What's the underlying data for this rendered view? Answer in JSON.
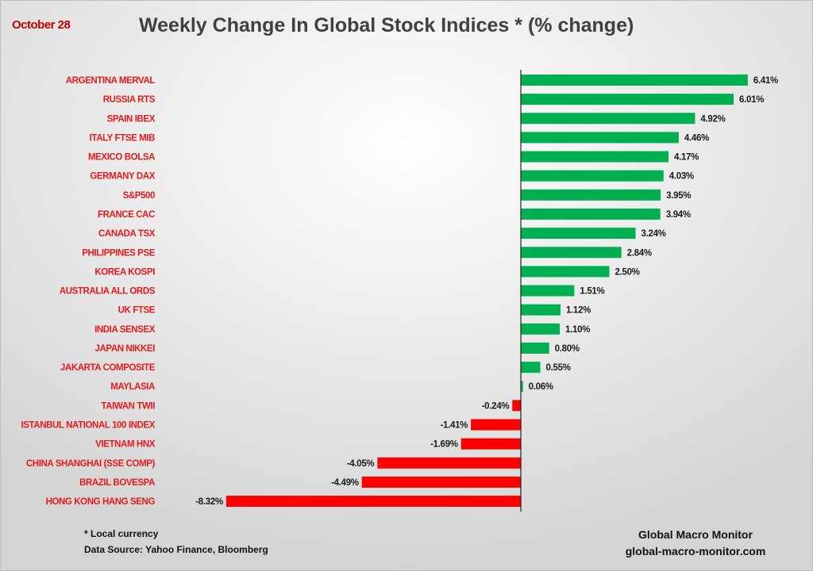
{
  "chart_data": {
    "type": "bar",
    "orientation": "horizontal",
    "title": "Weekly Change In Global Stock Indices * (% change)",
    "date": "October 28",
    "categories": [
      "ARGENTINA MERVAL",
      "RUSSIA RTS",
      "SPAIN IBEX",
      "ITALY FTSE MIB",
      "MEXICO BOLSA",
      "GERMANY DAX",
      "S&P500",
      "FRANCE CAC",
      "CANADA TSX",
      "PHILIPPINES PSE",
      "KOREA KOSPI",
      "AUSTRALIA ALL ORDS",
      "UK FTSE",
      "INDIA SENSEX",
      "JAPAN NIKKEI",
      "JAKARTA COMPOSITE",
      "MAYLASIA",
      "TAIWAN  TWII",
      "ISTANBUL NATIONAL 100 INDEX",
      "VIETNAM HNX",
      "CHINA SHANGHAI (SSE COMP)",
      "BRAZIL BOVESPA",
      "HONG KONG HANG SENG"
    ],
    "values": [
      6.41,
      6.01,
      4.92,
      4.46,
      4.17,
      4.03,
      3.95,
      3.94,
      3.24,
      2.84,
      2.5,
      1.51,
      1.12,
      1.1,
      0.8,
      0.55,
      0.06,
      -0.24,
      -1.41,
      -1.69,
      -4.05,
      -4.49,
      -8.32
    ],
    "labels": [
      "6.41%",
      "6.01%",
      "4.92%",
      "4.46%",
      "4.17%",
      "4.03%",
      "3.95%",
      "3.94%",
      "3.24%",
      "2.84%",
      "2.50%",
      "1.51%",
      "1.12%",
      "1.10%",
      "0.80%",
      "0.55%",
      "0.06%",
      "-0.24%",
      "-1.41%",
      "-1.69%",
      "-4.05%",
      "-4.49%",
      "-8.32%"
    ],
    "xlim": [
      -8.5,
      6.9
    ],
    "grid": false,
    "legend": "none",
    "colors": {
      "positive": "#00b050",
      "negative": "#ff0000"
    }
  },
  "footer": {
    "note": "* Local currency",
    "source": "Data Source:  Yahoo Finance, Bloomberg",
    "brand": "Global Macro Monitor",
    "site": "global-macro-monitor.com"
  }
}
